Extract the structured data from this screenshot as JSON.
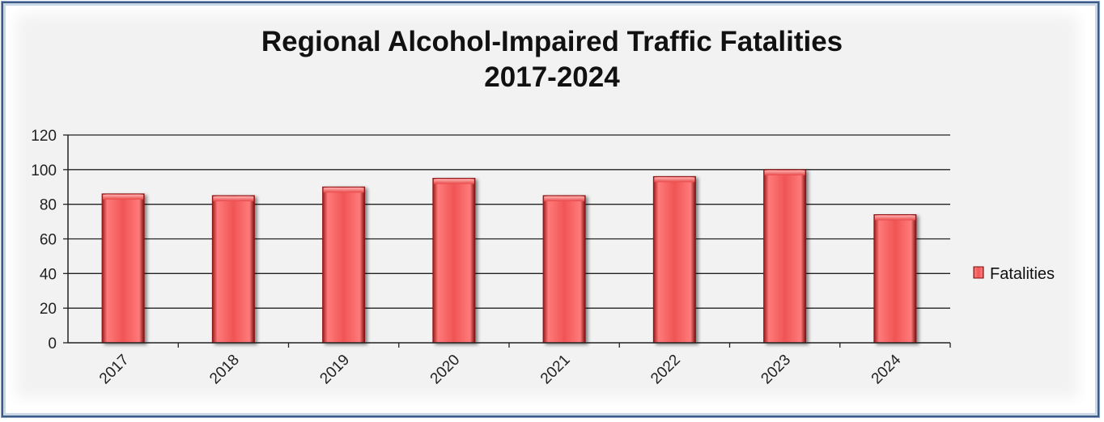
{
  "chart_data": {
    "type": "bar",
    "title": "Regional Alcohol-Impaired Traffic Fatalities",
    "subtitle": "2017-2024",
    "categories": [
      "2017",
      "2018",
      "2019",
      "2020",
      "2021",
      "2022",
      "2023",
      "2024"
    ],
    "series": [
      {
        "name": "Fatalities",
        "values": [
          86,
          85,
          90,
          95,
          85,
          96,
          100,
          74
        ]
      }
    ],
    "ylim": [
      0,
      120
    ],
    "yticks": [
      "0",
      "20",
      "40",
      "60",
      "80",
      "100",
      "120"
    ],
    "grid": true,
    "legend": "right",
    "colors": {
      "bar_fill": "#e84848",
      "bar_light": "#ff8a8a",
      "bar_dark": "#8e1414",
      "grid": "#222222"
    }
  }
}
